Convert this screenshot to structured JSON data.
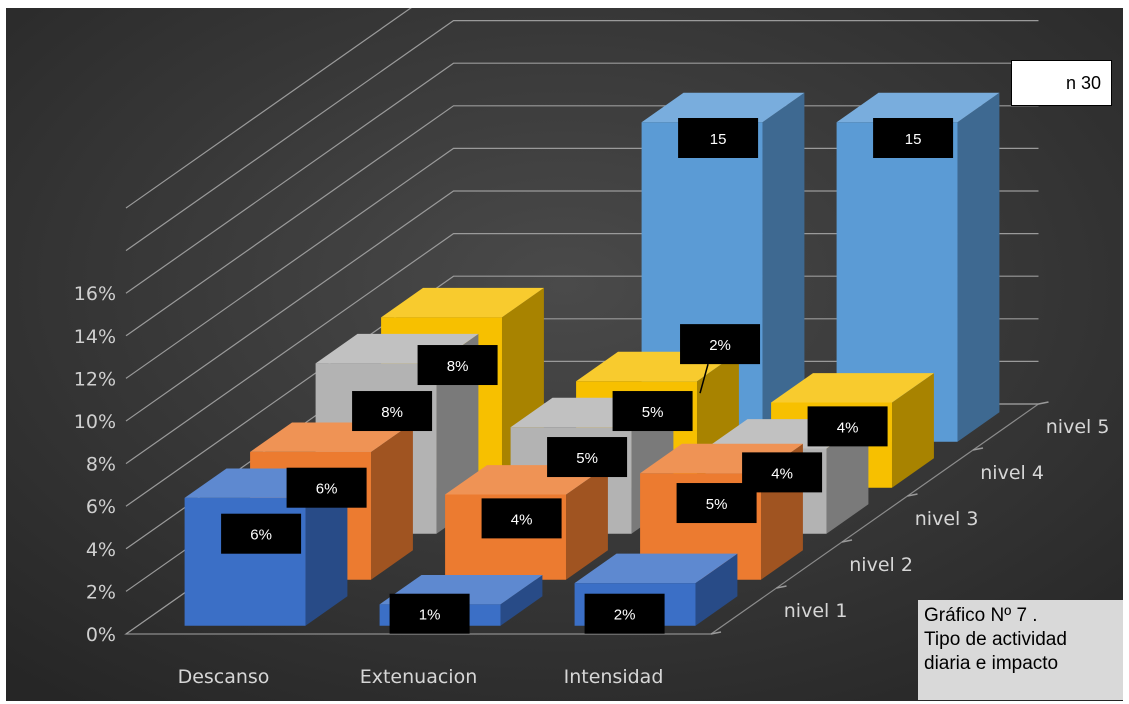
{
  "sample_note": "n 30",
  "caption": {
    "line1": "Gráfico Nº 7 .",
    "line2": "Tipo de actividad",
    "line3": "diaria e impacto"
  },
  "colors": {
    "nivel 1": "#3b6fc6",
    "nivel 2": "#ec7b30",
    "nivel 3": "#b3b3b3",
    "nivel 4": "#f7c000",
    "nivel 5": "#5b9bd5",
    "background": "#333333"
  },
  "chart_data": {
    "type": "bar",
    "title": "",
    "categories": [
      "Descanso",
      "Extenuacion",
      "Intensidad"
    ],
    "y_ticks": [
      "0%",
      "2%",
      "4%",
      "6%",
      "8%",
      "10%",
      "12%",
      "14%",
      "16%"
    ],
    "ylim": [
      0,
      16
    ],
    "grid": true,
    "series": [
      {
        "name": "nivel 1",
        "values": [
          6,
          1,
          2
        ],
        "labels": [
          "6%",
          "1%",
          "2%"
        ]
      },
      {
        "name": "nivel 2",
        "values": [
          6,
          4,
          5
        ],
        "labels": [
          "6%",
          "4%",
          "5%"
        ]
      },
      {
        "name": "nivel 3",
        "values": [
          8,
          5,
          4
        ],
        "labels": [
          "8%",
          "5%",
          "4%"
        ]
      },
      {
        "name": "nivel 4",
        "values": [
          8,
          5,
          4
        ],
        "labels": [
          "8%",
          "5%",
          "4%"
        ]
      },
      {
        "name": "nivel 5",
        "values": [
          0,
          2,
          15
        ],
        "labels": [
          "",
          "2%",
          "15"
        ]
      }
    ],
    "extra_bar": {
      "series": "nivel 5",
      "value": 15,
      "label": "15"
    }
  }
}
